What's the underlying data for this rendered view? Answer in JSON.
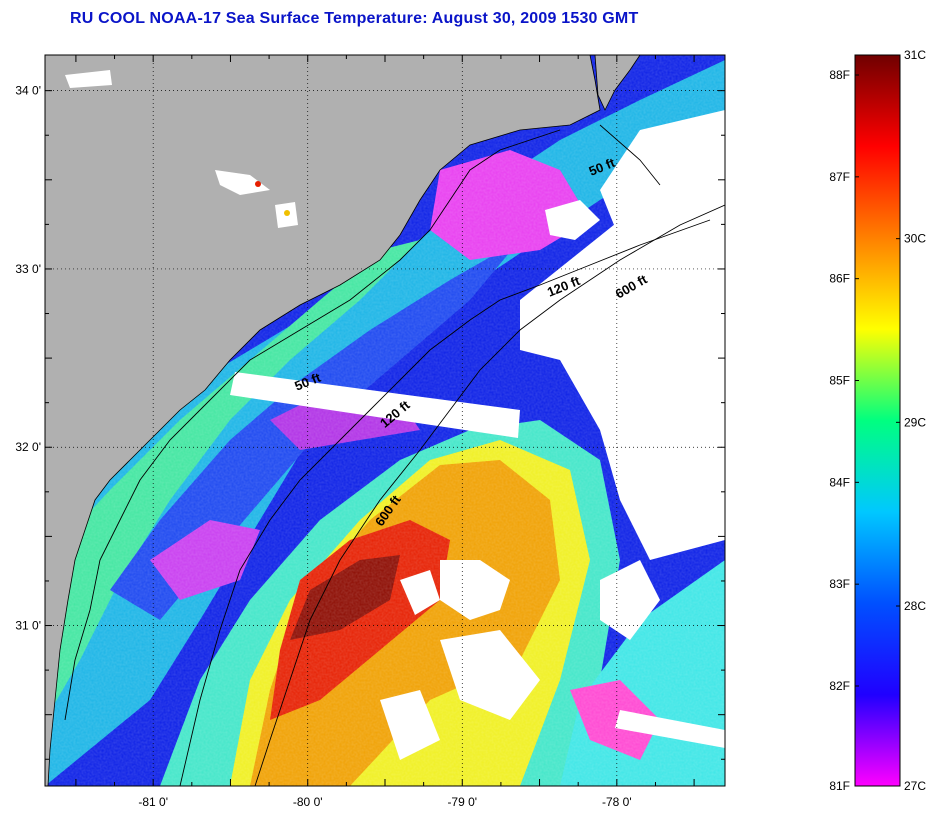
{
  "title": "RU COOL  NOAA-17  Sea Surface Temperature:  August 30, 2009 1530 GMT",
  "map": {
    "lon_range": [
      -81.7,
      -77.3
    ],
    "lat_range": [
      30.1,
      34.2
    ],
    "lon_ticks": [
      {
        "value": -81,
        "label": "-81 0'"
      },
      {
        "value": -80,
        "label": "-80 0'"
      },
      {
        "value": -79,
        "label": "-79 0'"
      },
      {
        "value": -78,
        "label": "-78 0'"
      }
    ],
    "lat_ticks": [
      {
        "value": 34,
        "label": "34 0'"
      },
      {
        "value": 33,
        "label": "33 0'"
      },
      {
        "value": 32,
        "label": "32 0'"
      },
      {
        "value": 31,
        "label": "31 0'"
      }
    ],
    "contour_labels": [
      {
        "id": "50ft-north",
        "text": "50 ft"
      },
      {
        "id": "50ft-south",
        "text": "50 ft"
      },
      {
        "id": "120ft-north",
        "text": "120 ft"
      },
      {
        "id": "120ft-south",
        "text": "120 ft"
      },
      {
        "id": "600ft-north",
        "text": "600 ft"
      },
      {
        "id": "600ft-south",
        "text": "600 ft"
      }
    ],
    "colors": {
      "land": "#b0b0b0",
      "cloud": "#ffffff",
      "coastline": "#000000"
    }
  },
  "colorbar": {
    "fahrenheit_labels": [
      "88F",
      "87F",
      "86F",
      "85F",
      "84F",
      "83F",
      "82F",
      "81F"
    ],
    "celsius_labels": [
      "31C",
      "30C",
      "29C",
      "28C",
      "27C"
    ],
    "range_c": [
      27,
      31
    ],
    "stops": [
      "#ff00ff",
      "#2000ff",
      "#0050ff",
      "#00c8ff",
      "#00ff80",
      "#ffff00",
      "#ff8000",
      "#ff0000",
      "#700000"
    ]
  }
}
